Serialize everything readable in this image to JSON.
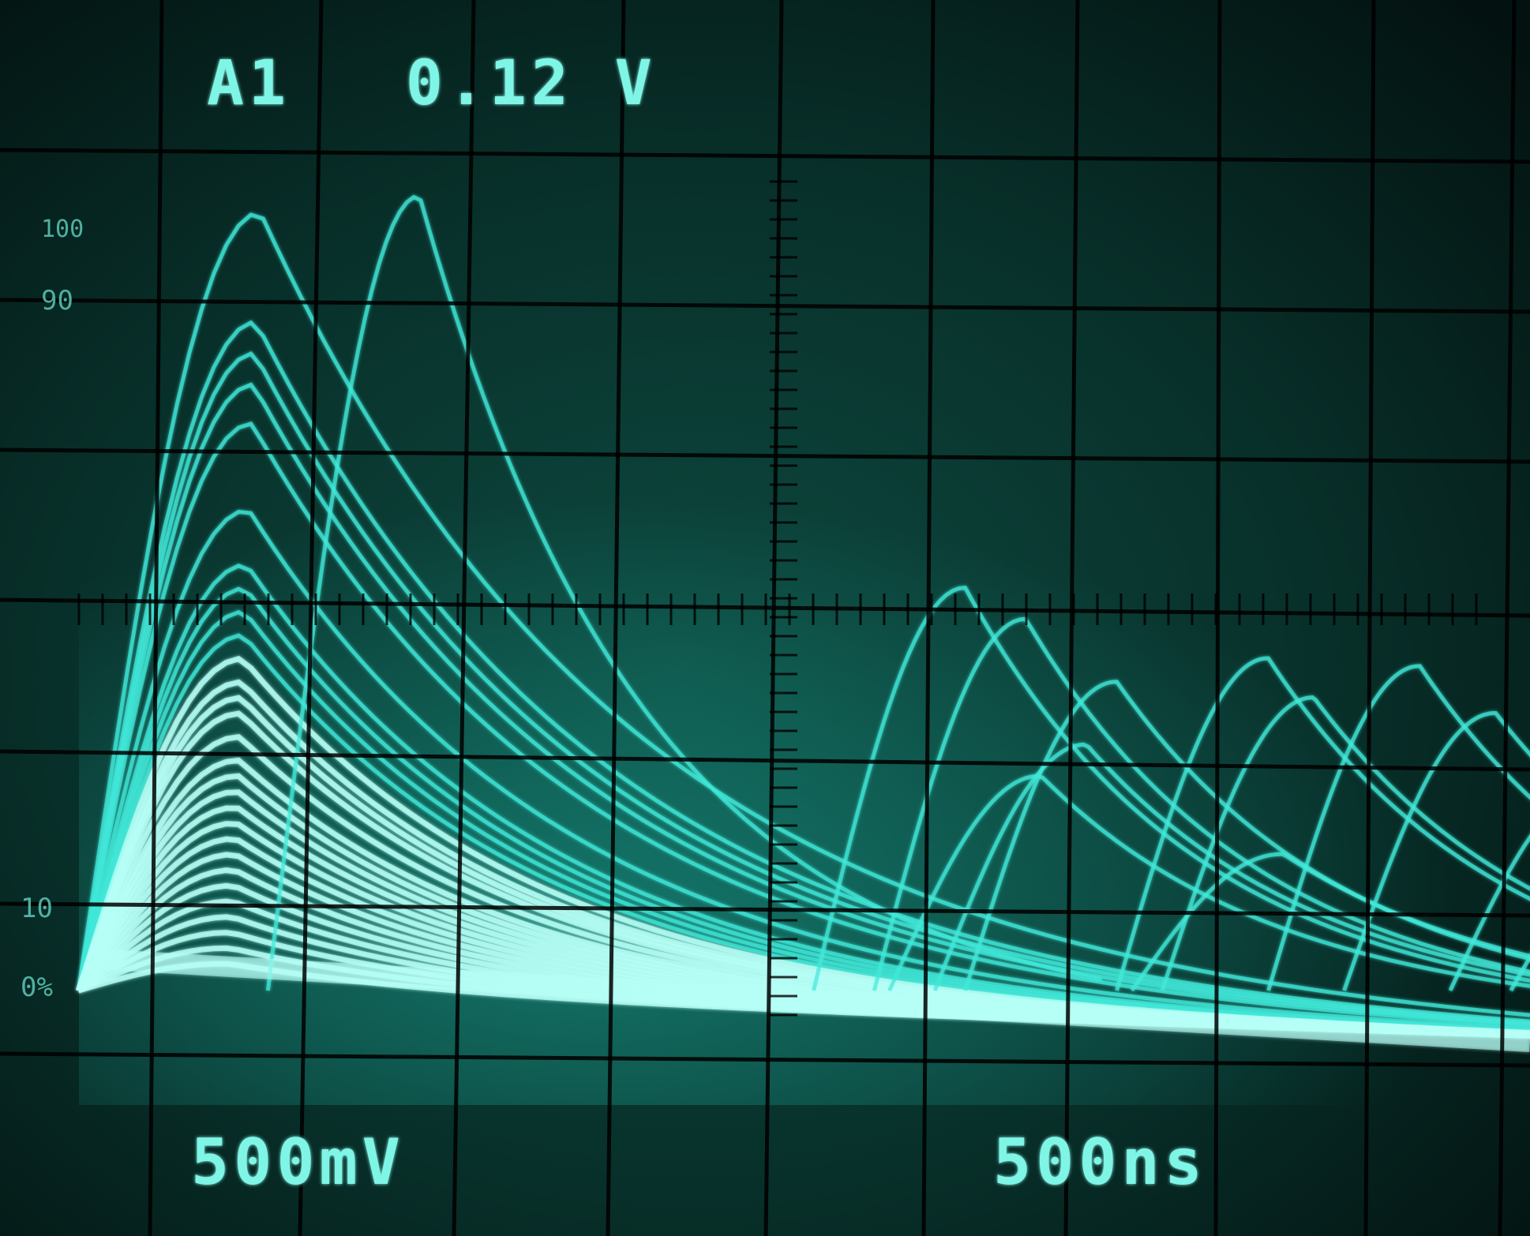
{
  "readouts": {
    "channel": "A1",
    "value": "0.12 V",
    "volts_per_div": "500mV",
    "time_per_div": "500ns"
  },
  "graticule_labels": {
    "p100": "100",
    "p90": "90",
    "p10": "10",
    "p0": "0%"
  },
  "colors": {
    "background": "#020605",
    "screen_glow": "#0a3a33",
    "trace": "#40e8d8",
    "trace_bright": "#b6fff6",
    "graticule": "#000000"
  },
  "traces": {
    "group_a_peaks_pct": [
      100,
      86,
      82,
      78,
      73,
      62,
      55,
      52,
      49,
      46,
      43,
      40,
      38,
      36,
      33,
      30,
      28,
      26,
      24,
      22,
      20,
      18,
      16,
      14,
      12,
      10,
      8,
      6,
      4
    ],
    "group_b": [
      {
        "peak_div": 1.7,
        "peak_pct": 102
      },
      {
        "peak_div": 5.3,
        "peak_pct": 52
      },
      {
        "peak_div": 5.7,
        "peak_pct": 48
      },
      {
        "peak_div": 6.3,
        "peak_pct": 40
      },
      {
        "peak_div": 6.1,
        "peak_pct": 32
      },
      {
        "peak_div": 5.8,
        "peak_pct": 28
      },
      {
        "peak_div": 7.3,
        "peak_pct": 43
      },
      {
        "peak_div": 7.6,
        "peak_pct": 38
      },
      {
        "peak_div": 8.3,
        "peak_pct": 42
      },
      {
        "peak_div": 8.8,
        "peak_pct": 36
      },
      {
        "peak_div": 7.4,
        "peak_pct": 18
      },
      {
        "peak_div": 9.5,
        "peak_pct": 27
      },
      {
        "peak_div": 9.9,
        "peak_pct": 22
      }
    ]
  }
}
